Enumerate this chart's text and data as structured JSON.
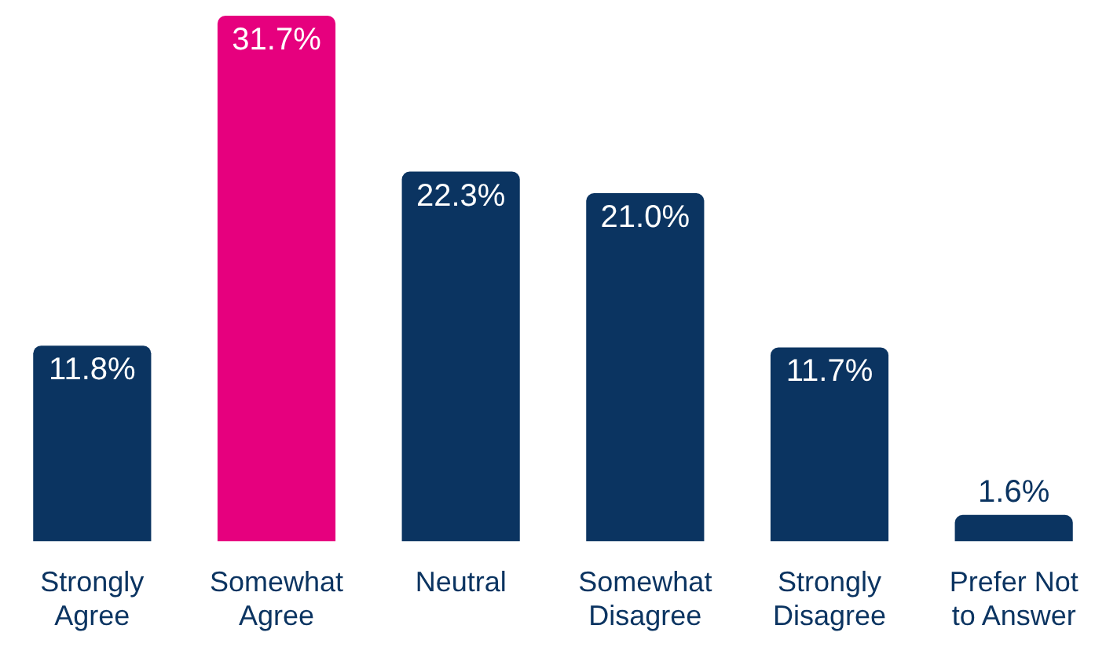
{
  "chart_data": {
    "type": "bar",
    "categories": [
      "Strongly Agree",
      "Somewhat Agree",
      "Neutral",
      "Somewhat Disagree",
      "Strongly Disagree",
      "Prefer Not to Answer"
    ],
    "values": [
      11.8,
      31.7,
      22.3,
      21.0,
      11.7,
      1.6
    ],
    "colors": [
      "#0b3461",
      "#e6007e",
      "#0b3461",
      "#0b3461",
      "#0b3461",
      "#0b3461"
    ],
    "value_labels": [
      "11.8%",
      "31.7%",
      "22.3%",
      "21.0%",
      "11.7%",
      "1.6%"
    ],
    "grid": false,
    "legend": false,
    "tick_labels": "x"
  }
}
